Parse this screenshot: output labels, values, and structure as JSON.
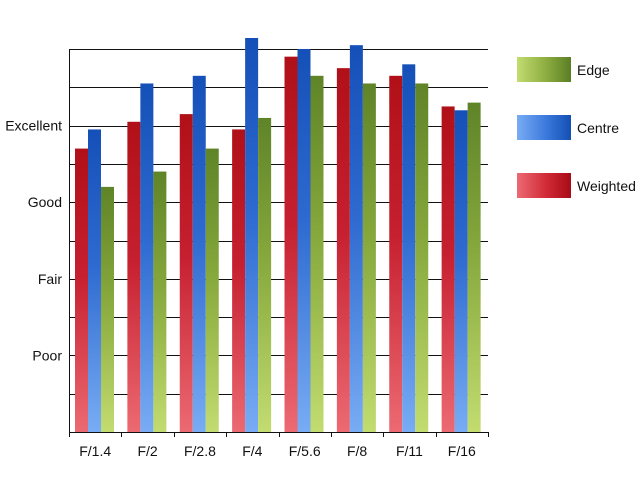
{
  "chart_data": {
    "type": "bar",
    "title": "",
    "xlabel": "",
    "ylabel": "",
    "categories": [
      "F/1.4",
      "F/2",
      "F/2.8",
      "F/4",
      "F/5.6",
      "F/8",
      "F/11",
      "F/16"
    ],
    "y_tick_labels": [
      "Poor",
      "Fair",
      "Good",
      "Excellent"
    ],
    "y_tick_values": [
      2,
      4,
      6,
      8
    ],
    "ylim": [
      0,
      10
    ],
    "grid": true,
    "legend_position": "right",
    "series": [
      {
        "name": "Weighted",
        "color": "#c8141e",
        "values": [
          7.4,
          8.1,
          8.3,
          7.9,
          9.8,
          9.5,
          9.3,
          8.5
        ]
      },
      {
        "name": "Centre",
        "color": "#1a5cc0",
        "values": [
          7.9,
          9.1,
          9.3,
          10.4,
          10.0,
          10.1,
          9.6,
          8.4
        ]
      },
      {
        "name": "Edge",
        "color": "#6c8e2a",
        "values": [
          6.4,
          6.8,
          7.4,
          8.2,
          9.3,
          9.1,
          9.1,
          8.6
        ]
      }
    ],
    "legend_order": [
      "Edge",
      "Centre",
      "Weighted"
    ]
  }
}
